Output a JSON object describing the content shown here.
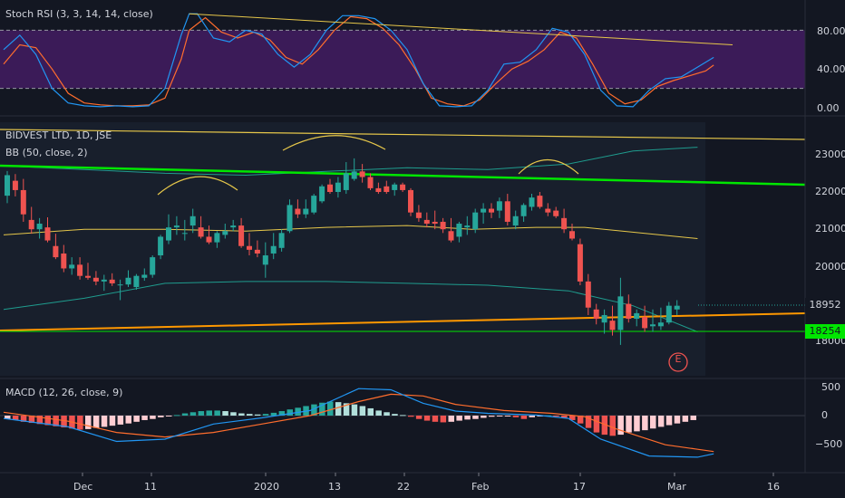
{
  "panels": {
    "stoch": {
      "title": "Stoch RSI (3, 3, 14, 14, close)",
      "ticks": [
        "80.00",
        "40.00",
        "0.00"
      ]
    },
    "price": {
      "title": "BIDVEST LTD, 1D, JSE",
      "subtitle": "BB (50, close, 2)",
      "ticks": [
        "23000",
        "22000",
        "21000",
        "20000",
        "18000"
      ],
      "last_price": "18952",
      "level_price": "18254",
      "last_price_color": "#26a69a",
      "level_color": "#00e600",
      "annotation": "E"
    },
    "macd": {
      "title": "MACD (12, 26, close, 9)",
      "ticks": [
        "500",
        "0",
        "−500"
      ]
    }
  },
  "xaxis": {
    "labels": [
      "Dec",
      "11",
      "2020",
      "13",
      "22",
      "Feb",
      "17",
      "Mar",
      "16"
    ]
  },
  "colors": {
    "up": "#26a69a",
    "down": "#ef5350",
    "bb_mid": "#e6c74a",
    "bb_band": "#1f9c8e",
    "stoch_k": "#2196f3",
    "stoch_d": "#ff6d2d",
    "trend_orange": "#ff9800",
    "trend_green": "#00e600",
    "bg": "#131722"
  },
  "chart_data": {
    "type": "candlestick",
    "title": "BIDVEST LTD, 1D, JSE",
    "ohlc": [
      [
        21900,
        22560,
        21700,
        22450
      ],
      [
        22300,
        22480,
        21880,
        22050
      ],
      [
        22050,
        22350,
        21200,
        21400
      ],
      [
        21250,
        21600,
        20880,
        21000
      ],
      [
        21000,
        21300,
        20750,
        21150
      ],
      [
        21050,
        21320,
        20650,
        20700
      ],
      [
        20550,
        20880,
        20200,
        20250
      ],
      [
        20350,
        20580,
        19850,
        19950
      ],
      [
        19950,
        20250,
        19780,
        20050
      ],
      [
        20050,
        20250,
        19650,
        19750
      ],
      [
        19750,
        20100,
        19650,
        19700
      ],
      [
        19700,
        19880,
        19500,
        19600
      ],
      [
        19600,
        19780,
        19350,
        19650
      ],
      [
        19650,
        19820,
        19480,
        19550
      ],
      [
        19500,
        19650,
        19100,
        19520
      ],
      [
        19520,
        19900,
        19450,
        19700
      ],
      [
        19450,
        19800,
        19380,
        19750
      ],
      [
        19700,
        19950,
        19620,
        19780
      ],
      [
        19780,
        20300,
        19700,
        20250
      ],
      [
        20300,
        20850,
        20200,
        20800
      ],
      [
        20700,
        21400,
        20600,
        21050
      ],
      [
        21050,
        21350,
        20850,
        21100
      ],
      [
        20900,
        21250,
        20700,
        20900
      ],
      [
        21100,
        21550,
        20900,
        21350
      ],
      [
        21050,
        21350,
        20750,
        20800
      ],
      [
        20800,
        21100,
        20600,
        20650
      ],
      [
        20650,
        20950,
        20500,
        20900
      ],
      [
        20850,
        21150,
        20750,
        20950
      ],
      [
        21050,
        21250,
        20950,
        21100
      ],
      [
        21100,
        21300,
        20500,
        20550
      ],
      [
        20550,
        20900,
        20300,
        20450
      ],
      [
        20450,
        20700,
        20250,
        20350
      ],
      [
        20050,
        20650,
        19700,
        20300
      ],
      [
        20350,
        20900,
        20200,
        20550
      ],
      [
        20500,
        21000,
        20400,
        20900
      ],
      [
        20950,
        21800,
        20900,
        21650
      ],
      [
        21550,
        21800,
        21300,
        21400
      ],
      [
        21400,
        21800,
        21300,
        21550
      ],
      [
        21450,
        21950,
        21400,
        21900
      ],
      [
        21750,
        22200,
        21700,
        22150
      ],
      [
        22200,
        22350,
        21950,
        22000
      ],
      [
        22000,
        22400,
        21850,
        22250
      ],
      [
        22050,
        22800,
        21950,
        22500
      ],
      [
        22350,
        22900,
        22300,
        22550
      ],
      [
        22550,
        22750,
        22250,
        22400
      ],
      [
        22400,
        22500,
        22050,
        22100
      ],
      [
        22100,
        22250,
        21950,
        22000
      ],
      [
        22150,
        22300,
        21950,
        22000
      ],
      [
        22050,
        22250,
        21900,
        22200
      ],
      [
        22200,
        22250,
        22000,
        22050
      ],
      [
        22050,
        22100,
        21350,
        21450
      ],
      [
        21450,
        21650,
        21200,
        21300
      ],
      [
        21250,
        21450,
        21050,
        21150
      ],
      [
        21200,
        21500,
        21000,
        21150
      ],
      [
        21200,
        21300,
        20900,
        21000
      ],
      [
        20950,
        21300,
        20650,
        20700
      ],
      [
        20800,
        21200,
        20650,
        21150
      ],
      [
        21050,
        21350,
        20850,
        21100
      ],
      [
        21000,
        21550,
        20900,
        21450
      ],
      [
        21450,
        21700,
        21150,
        21550
      ],
      [
        21550,
        21700,
        21300,
        21450
      ],
      [
        21500,
        21850,
        21300,
        21750
      ],
      [
        21750,
        21950,
        21100,
        21200
      ],
      [
        21100,
        21500,
        21000,
        21350
      ],
      [
        21350,
        21700,
        21200,
        21650
      ],
      [
        21600,
        21950,
        21500,
        21850
      ],
      [
        21900,
        22000,
        21550,
        21600
      ],
      [
        21550,
        21700,
        21350,
        21450
      ],
      [
        21500,
        21600,
        21300,
        21350
      ],
      [
        21300,
        21550,
        20900,
        21000
      ],
      [
        20950,
        21150,
        20700,
        20750
      ],
      [
        20600,
        20750,
        19500,
        19600
      ],
      [
        19600,
        19800,
        18700,
        18900
      ],
      [
        18850,
        19000,
        18450,
        18600
      ],
      [
        18500,
        18850,
        18200,
        18700
      ],
      [
        18550,
        18950,
        18150,
        18300
      ],
      [
        18300,
        19700,
        17900,
        19200
      ],
      [
        19000,
        19250,
        18500,
        18600
      ],
      [
        18600,
        18850,
        18400,
        18750
      ],
      [
        18650,
        18950,
        18250,
        18350
      ],
      [
        18400,
        18850,
        18250,
        18450
      ],
      [
        18400,
        18900,
        18300,
        18500
      ],
      [
        18500,
        19050,
        18450,
        18950
      ],
      [
        18850,
        19100,
        18700,
        18950
      ]
    ]
  }
}
